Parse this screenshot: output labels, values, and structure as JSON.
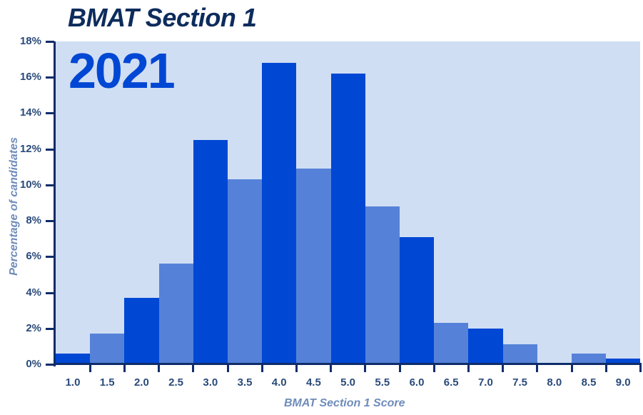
{
  "title": "BMAT Section 1",
  "year_label": "2021",
  "colors": {
    "background_plot": "#d0def4",
    "bar_dark": "#0047d4",
    "bar_light": "#5582d8",
    "axis": "#0f2d6b",
    "title": "#0d2c5c",
    "axis_title": "#6e8cba"
  },
  "chart_data": {
    "type": "bar",
    "title": "BMAT Section 1",
    "subtitle": "2021",
    "xlabel": "BMAT Section 1 Score",
    "ylabel": "Percentage of candidates",
    "categories": [
      "1.0",
      "1.5",
      "2.0",
      "2.5",
      "3.0",
      "3.5",
      "4.0",
      "4.5",
      "5.0",
      "5.5",
      "6.0",
      "6.5",
      "7.0",
      "7.5",
      "8.0",
      "8.5",
      "9.0"
    ],
    "values": [
      0.6,
      1.7,
      3.7,
      5.6,
      12.5,
      10.3,
      16.8,
      10.9,
      16.2,
      8.8,
      7.1,
      2.3,
      2.0,
      1.1,
      0.0,
      0.6,
      0.3
    ],
    "unit": "%",
    "ylim": [
      0,
      18
    ],
    "yticks": [
      "0%",
      "2%",
      "4%",
      "6%",
      "8%",
      "10%",
      "12%",
      "14%",
      "16%",
      "18%"
    ],
    "grid": false,
    "legend": null,
    "bar_color_pattern": [
      "dark",
      "light",
      "dark",
      "light",
      "dark",
      "light",
      "dark",
      "light",
      "dark",
      "light",
      "dark",
      "light",
      "dark",
      "light",
      "dark",
      "light",
      "dark"
    ]
  }
}
